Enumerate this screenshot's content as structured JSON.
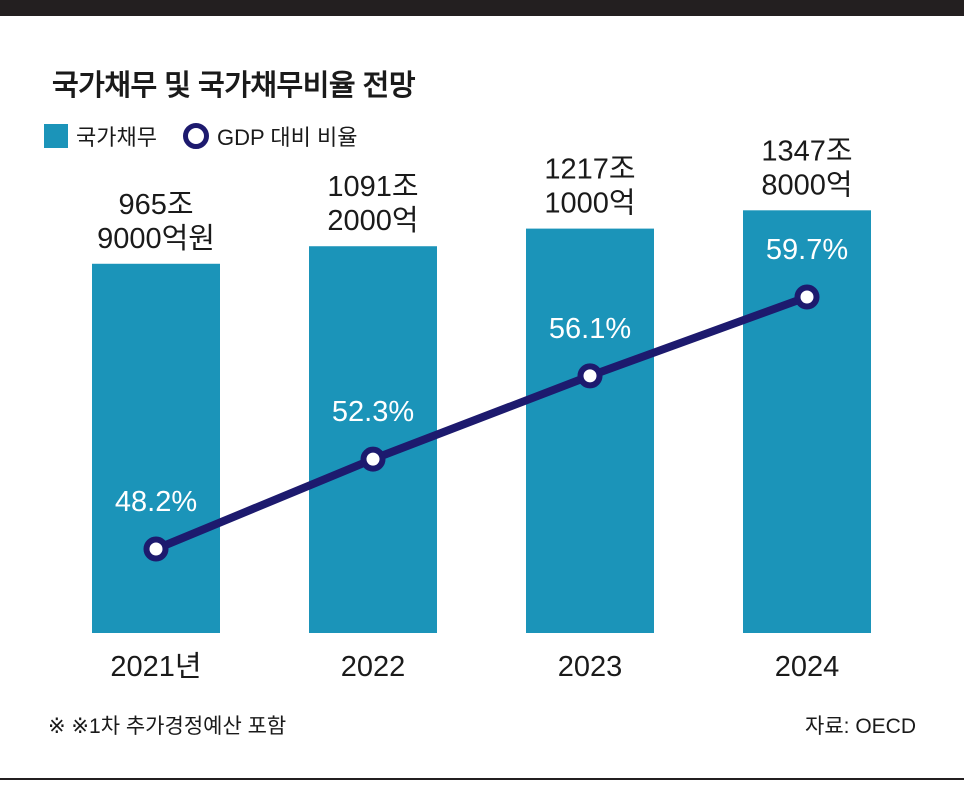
{
  "title": "국가채무 및 국가채무비율 전망",
  "legend": {
    "bar_label": "국가채무",
    "line_label": "GDP 대비 비율"
  },
  "footnote": "※ ※1차 추가경정예산 포함",
  "source": "자료: OECD",
  "colors": {
    "bar": "#1b94b9",
    "line": "#1d1a6e",
    "rule": "#231f20"
  },
  "chart_data": {
    "type": "bar+line",
    "categories": [
      "2021년",
      "2022",
      "2023",
      "2024"
    ],
    "series": [
      {
        "name": "국가채무",
        "type": "bar",
        "unit": "억원",
        "values": [
          9659000,
          10912000,
          12171000,
          13478000
        ],
        "labels": [
          [
            "965조",
            "9000억원"
          ],
          [
            "1091조",
            "2000억"
          ],
          [
            "1217조",
            "1000억"
          ],
          [
            "1347조",
            "8000억"
          ]
        ]
      },
      {
        "name": "GDP 대비 비율",
        "type": "line",
        "unit": "%",
        "values": [
          48.2,
          52.3,
          56.1,
          59.7
        ],
        "labels": [
          "48.2%",
          "52.3%",
          "56.1%",
          "59.7%"
        ]
      }
    ]
  }
}
